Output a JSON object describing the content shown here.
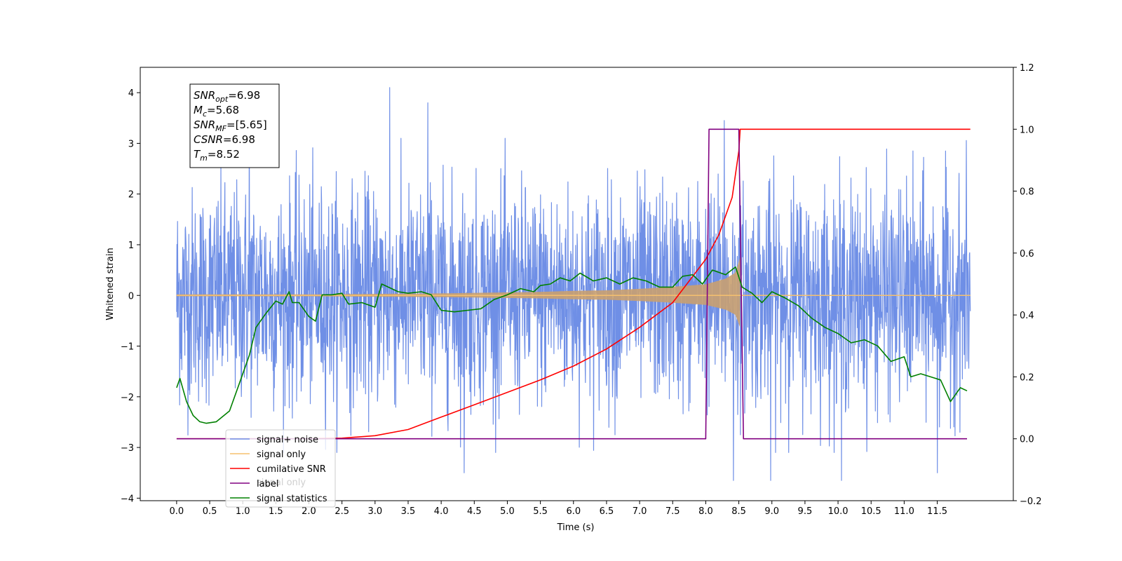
{
  "chart_data": {
    "type": "line",
    "xlabel": "Time (s)",
    "ylabel": "Whitened strain",
    "xlim": [
      -0.55,
      12.65
    ],
    "ylim": [
      -4.05,
      4.5
    ],
    "y2lim": [
      -0.2,
      1.2
    ],
    "x_ticks": [
      "0.0",
      "0.5",
      "1.0",
      "1.5",
      "2.0",
      "2.5",
      "3.0",
      "3.5",
      "4.0",
      "4.5",
      "5.0",
      "5.5",
      "6.0",
      "6.5",
      "7.0",
      "7.5",
      "8.0",
      "8.5",
      "9.0",
      "9.5",
      "10.0",
      "10.5",
      "11.0",
      "11.5"
    ],
    "y_ticks": [
      "−4",
      "−3",
      "−2",
      "−1",
      "0",
      "1",
      "2",
      "3",
      "4"
    ],
    "y2_ticks": [
      "−0.2",
      "0.0",
      "0.2",
      "0.4",
      "0.6",
      "0.8",
      "1.0",
      "1.2"
    ],
    "annotation": {
      "lines": [
        {
          "sym": "SNR",
          "sub": "opt",
          "value": "=6.98"
        },
        {
          "sym": "M",
          "sub": "c",
          "value": "=5.68"
        },
        {
          "sym": "SNR",
          "sub": "MF",
          "value": "=[5.65]"
        },
        {
          "sym": "CSNR",
          "sub": "",
          "value": "=6.98"
        },
        {
          "sym": "T",
          "sub": "m",
          "value": "=8.52"
        }
      ]
    },
    "legend": {
      "position": "lower-left",
      "entries": [
        {
          "label": "signal+ noise",
          "color": "#6f8fe6"
        },
        {
          "label": "signal only",
          "color": "#f5c06f"
        },
        {
          "label": "cumilative SNR",
          "color": "#ff0000"
        },
        {
          "label": "label",
          "color": "#800080"
        },
        {
          "label": "signal statistics",
          "color": "#008000"
        }
      ],
      "obscured_label": "signal only"
    },
    "series": [
      {
        "name": "signal+ noise",
        "axis": "left",
        "color": "#6f8fe6",
        "style": "dense noise trace, t = 0 to 12 s, amplitude mostly within ±2.5, peaks near ±4",
        "t_range": [
          0,
          12
        ],
        "peaks": [
          {
            "x": 3.22,
            "y": 4.1
          },
          {
            "x": 3.8,
            "y": 3.8
          },
          {
            "x": 1.1,
            "y": 3.7
          },
          {
            "x": 8.28,
            "y": 3.45
          },
          {
            "x": 4.35,
            "y": -3.5
          },
          {
            "x": 8.42,
            "y": -3.65
          },
          {
            "x": 8.98,
            "y": -3.65
          },
          {
            "x": 10.05,
            "y": -3.65
          },
          {
            "x": 11.5,
            "y": -3.5
          }
        ]
      },
      {
        "name": "signal only",
        "axis": "left",
        "color": "#f5c06f",
        "style": "chirp whose envelope grows toward merger near t = 8.52 s",
        "envelope_x": [
          0,
          1,
          2,
          3,
          4,
          5,
          5.5,
          6,
          6.5,
          7,
          7.5,
          8,
          8.3,
          8.45,
          8.52,
          8.53,
          12
        ],
        "envelope_y": [
          0.02,
          0.02,
          0.02,
          0.03,
          0.04,
          0.06,
          0.07,
          0.09,
          0.1,
          0.13,
          0.17,
          0.22,
          0.33,
          0.45,
          0.75,
          0,
          0
        ]
      },
      {
        "name": "cumilative SNR",
        "axis": "right",
        "color": "#ff0000",
        "x": [
          0,
          1,
          2,
          2.5,
          3,
          3.5,
          4,
          4.5,
          5,
          5.5,
          6,
          6.5,
          7,
          7.5,
          8,
          8.2,
          8.4,
          8.5,
          8.52,
          12
        ],
        "y": [
          0,
          0,
          0,
          0.002,
          0.01,
          0.03,
          0.07,
          0.11,
          0.15,
          0.19,
          0.235,
          0.29,
          0.36,
          0.44,
          0.58,
          0.66,
          0.78,
          0.93,
          1.0,
          1.0
        ]
      },
      {
        "name": "label",
        "axis": "right",
        "color": "#800080",
        "x": [
          0,
          8.0,
          8.05,
          8.5,
          8.57,
          11.95
        ],
        "y": [
          0,
          0,
          1,
          1,
          0,
          0
        ]
      },
      {
        "name": "signal statistics",
        "axis": "right",
        "color": "#008000",
        "x": [
          0,
          0.05,
          0.15,
          0.25,
          0.35,
          0.45,
          0.6,
          0.8,
          0.95,
          1.1,
          1.2,
          1.35,
          1.5,
          1.6,
          1.7,
          1.75,
          1.85,
          2.0,
          2.1,
          2.2,
          2.35,
          2.5,
          2.6,
          2.8,
          3.0,
          3.1,
          3.2,
          3.35,
          3.5,
          3.7,
          3.85,
          4.0,
          4.2,
          4.4,
          4.6,
          4.8,
          5.0,
          5.2,
          5.4,
          5.5,
          5.65,
          5.8,
          5.95,
          6.1,
          6.3,
          6.5,
          6.7,
          6.9,
          7.1,
          7.3,
          7.5,
          7.65,
          7.8,
          7.95,
          8.1,
          8.3,
          8.45,
          8.55,
          8.7,
          8.85,
          9.0,
          9.2,
          9.4,
          9.6,
          9.8,
          10.0,
          10.2,
          10.4,
          10.6,
          10.8,
          11.0,
          11.1,
          11.25,
          11.4,
          11.55,
          11.7,
          11.85,
          11.95
        ],
        "y": [
          0.165,
          0.195,
          0.12,
          0.075,
          0.055,
          0.05,
          0.055,
          0.09,
          0.18,
          0.27,
          0.36,
          0.405,
          0.445,
          0.435,
          0.475,
          0.44,
          0.44,
          0.395,
          0.38,
          0.465,
          0.465,
          0.47,
          0.435,
          0.44,
          0.425,
          0.5,
          0.49,
          0.475,
          0.47,
          0.475,
          0.465,
          0.415,
          0.41,
          0.415,
          0.42,
          0.45,
          0.465,
          0.485,
          0.475,
          0.495,
          0.5,
          0.52,
          0.51,
          0.535,
          0.51,
          0.52,
          0.5,
          0.52,
          0.51,
          0.49,
          0.49,
          0.525,
          0.53,
          0.5,
          0.545,
          0.53,
          0.555,
          0.49,
          0.47,
          0.44,
          0.475,
          0.455,
          0.43,
          0.39,
          0.36,
          0.34,
          0.31,
          0.32,
          0.3,
          0.25,
          0.265,
          0.2,
          0.21,
          0.2,
          0.19,
          0.12,
          0.165,
          0.155
        ]
      }
    ]
  }
}
